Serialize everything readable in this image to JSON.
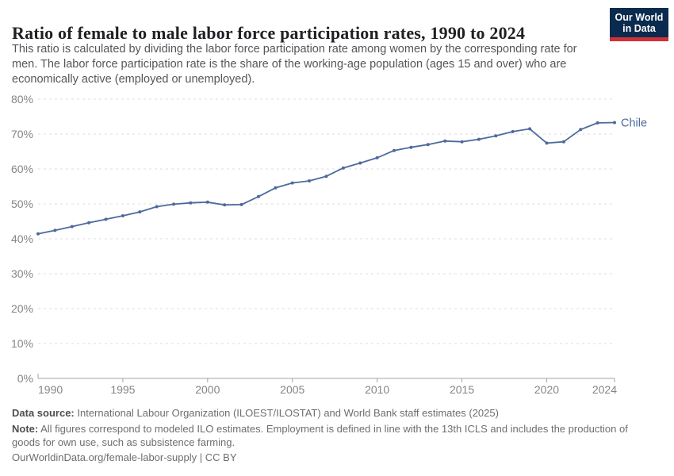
{
  "header": {
    "title": "Ratio of female to male labor force participation rates, 1990 to 2024",
    "logo": {
      "line1": "Our World",
      "line2": "in Data"
    }
  },
  "subtitle": {
    "lines": [
      "This ratio is calculated by dividing the labor force participation rate among women by the corresponding rate for",
      "men. The labor force participation rate is the share of the working-age population (ages 15 and over) who are",
      "economically active (employed or unemployed)."
    ]
  },
  "chart_data": {
    "type": "line",
    "title": "Ratio of female to male labor force participation rates, 1990 to 2024",
    "xlabel": "",
    "ylabel": "",
    "xlim": [
      1990,
      2024
    ],
    "ylim": [
      0,
      80
    ],
    "grid": "horizontal-dashed",
    "legend_position": "end-of-line-label",
    "x_ticks": [
      1990,
      1995,
      2000,
      2005,
      2010,
      2015,
      2020,
      2024
    ],
    "y_ticks": [
      {
        "v": 0,
        "label": "0%"
      },
      {
        "v": 10,
        "label": "10%"
      },
      {
        "v": 20,
        "label": "20%"
      },
      {
        "v": 30,
        "label": "30%"
      },
      {
        "v": 40,
        "label": "40%"
      },
      {
        "v": 50,
        "label": "50%"
      },
      {
        "v": 60,
        "label": "60%"
      },
      {
        "v": 70,
        "label": "70%"
      },
      {
        "v": 80,
        "label": "80%"
      }
    ],
    "x": [
      1990,
      1991,
      1992,
      1993,
      1994,
      1995,
      1996,
      1997,
      1998,
      1999,
      2000,
      2001,
      2002,
      2003,
      2004,
      2005,
      2006,
      2007,
      2008,
      2009,
      2010,
      2011,
      2012,
      2013,
      2014,
      2015,
      2016,
      2017,
      2018,
      2019,
      2020,
      2021,
      2022,
      2023,
      2024
    ],
    "series": [
      {
        "name": "Chile",
        "color": "#4c6a9c",
        "values": [
          41.4,
          42.4,
          43.5,
          44.6,
          45.6,
          46.6,
          47.7,
          49.2,
          49.9,
          50.3,
          50.5,
          49.7,
          49.8,
          52.1,
          54.6,
          56.0,
          56.6,
          57.9,
          60.3,
          61.7,
          63.2,
          65.3,
          66.2,
          67.0,
          68.0,
          67.8,
          68.5,
          69.5,
          70.7,
          71.5,
          67.4,
          67.8,
          71.3,
          73.2,
          73.3
        ]
      }
    ]
  },
  "footer": {
    "source_label": "Data source:",
    "source_text": "International Labour Organization (ILOEST/ILOSTAT) and World Bank staff estimates (2025)",
    "note_label": "Note:",
    "note_line1": "All figures correspond to modeled ILO estimates. Employment is defined in line with the 13th ICLS and includes the production of",
    "note_line2": "goods for own use, such as subsistence farming.",
    "url": "OurWorldinData.org/female-labor-supply",
    "separator": "|",
    "license": "CC BY"
  },
  "colors": {
    "line": "#4c6a9c",
    "grid": "#dedede",
    "axis": "#a3a3a3",
    "tick_text": "#858585",
    "logo_bg": "#0b2b4e",
    "logo_accent": "#d0303a"
  }
}
